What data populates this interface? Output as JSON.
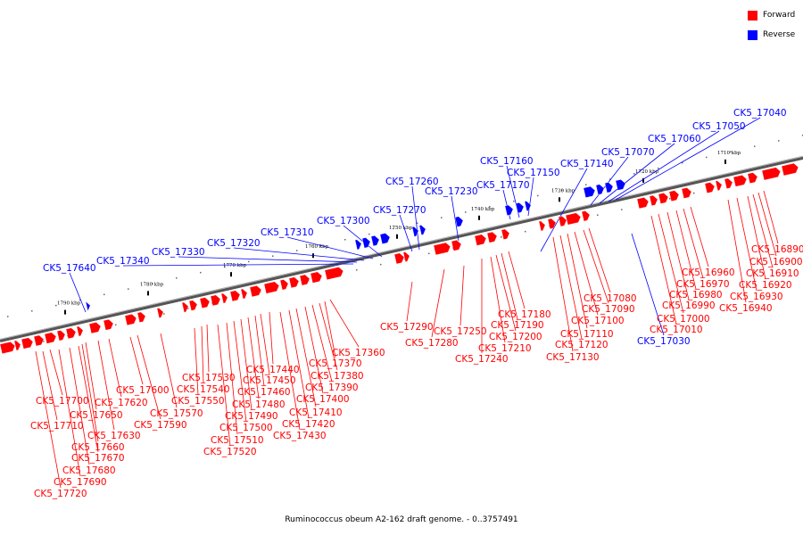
{
  "caption": "Ruminococcus obeum A2-162 draft genome. - 0..3757491",
  "legend": [
    {
      "label": "Forward",
      "color": "#ff0000"
    },
    {
      "label": "Reverse",
      "color": "#0000ff"
    }
  ],
  "scale_labels": [
    "1710 kbp",
    "1720 kbp",
    "1730 kbp",
    "1740 kbp",
    "1750 kbp",
    "1760 kbp",
    "1770 kbp",
    "1780 kbp",
    "1790 kbp"
  ],
  "reverse_genes": [
    "CK5_17040",
    "CK5_17050",
    "CK5_17060",
    "CK5_17070",
    "CK5_17140",
    "CK5_17150",
    "CK5_17160",
    "CK5_17170",
    "CK5_17230",
    "CK5_17260",
    "CK5_17270",
    "CK5_17300",
    "CK5_17310",
    "CK5_17320",
    "CK5_17330",
    "CK5_17340",
    "CK5_17640",
    "CK5_17030"
  ],
  "forward_genes": [
    "CK5_16890",
    "CK5_16900",
    "CK5_16910",
    "CK5_16920",
    "CK5_16930",
    "CK5_16940",
    "CK5_16960",
    "CK5_16970",
    "CK5_16980",
    "CK5_16990",
    "CK5_17000",
    "CK5_17010",
    "CK5_17080",
    "CK5_17090",
    "CK5_17100",
    "CK5_17110",
    "CK5_17120",
    "CK5_17130",
    "CK5_17180",
    "CK5_17190",
    "CK5_17200",
    "CK5_17210",
    "CK5_17240",
    "CK5_17250",
    "CK5_17280",
    "CK5_17290",
    "CK5_17360",
    "CK5_17370",
    "CK5_17380",
    "CK5_17390",
    "CK5_17400",
    "CK5_17410",
    "CK5_17420",
    "CK5_17430",
    "CK5_17440",
    "CK5_17450",
    "CK5_17460",
    "CK5_17480",
    "CK5_17490",
    "CK5_17500",
    "CK5_17510",
    "CK5_17520",
    "CK5_17530",
    "CK5_17540",
    "CK5_17550",
    "CK5_17570",
    "CK5_17590",
    "CK5_17600",
    "CK5_17620",
    "CK5_17630",
    "CK5_17650",
    "CK5_17660",
    "CK5_17670",
    "CK5_17680",
    "CK5_17690",
    "CK5_17700",
    "CK5_17710",
    "CK5_17720"
  ]
}
